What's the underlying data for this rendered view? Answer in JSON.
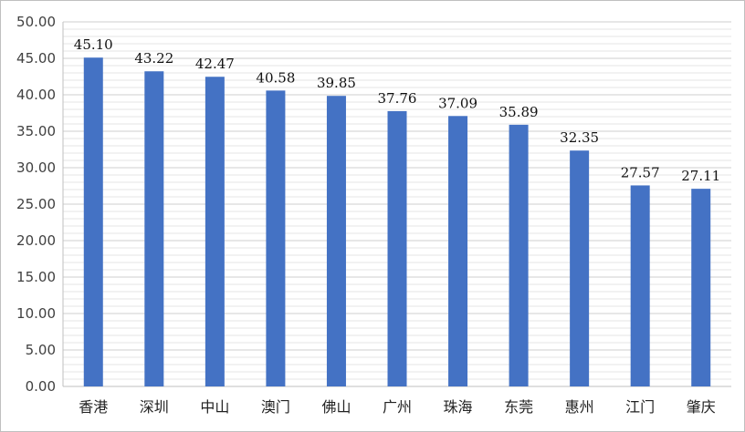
{
  "chart_data": {
    "type": "bar",
    "title": "",
    "xlabel": "",
    "ylabel": "",
    "categories": [
      "香港",
      "深圳",
      "中山",
      "澳门",
      "佛山",
      "广州",
      "珠海",
      "东莞",
      "惠州",
      "江门",
      "肇庆"
    ],
    "values": [
      45.1,
      43.22,
      42.47,
      40.58,
      39.85,
      37.76,
      37.09,
      35.89,
      32.35,
      27.57,
      27.11
    ],
    "value_labels": [
      "45.10",
      "43.22",
      "42.47",
      "40.58",
      "39.85",
      "37.76",
      "37.09",
      "35.89",
      "32.35",
      "27.57",
      "27.11"
    ],
    "y_ticks": [
      "0.00",
      "5.00",
      "10.00",
      "15.00",
      "20.00",
      "25.00",
      "30.00",
      "35.00",
      "40.00",
      "45.00",
      "50.00"
    ],
    "ylim": [
      0,
      50
    ],
    "grid": true,
    "bar_color": "#4472C4",
    "highlight_label_color": "#FF0000",
    "highlight_index": 0,
    "label_color": "#111111"
  }
}
